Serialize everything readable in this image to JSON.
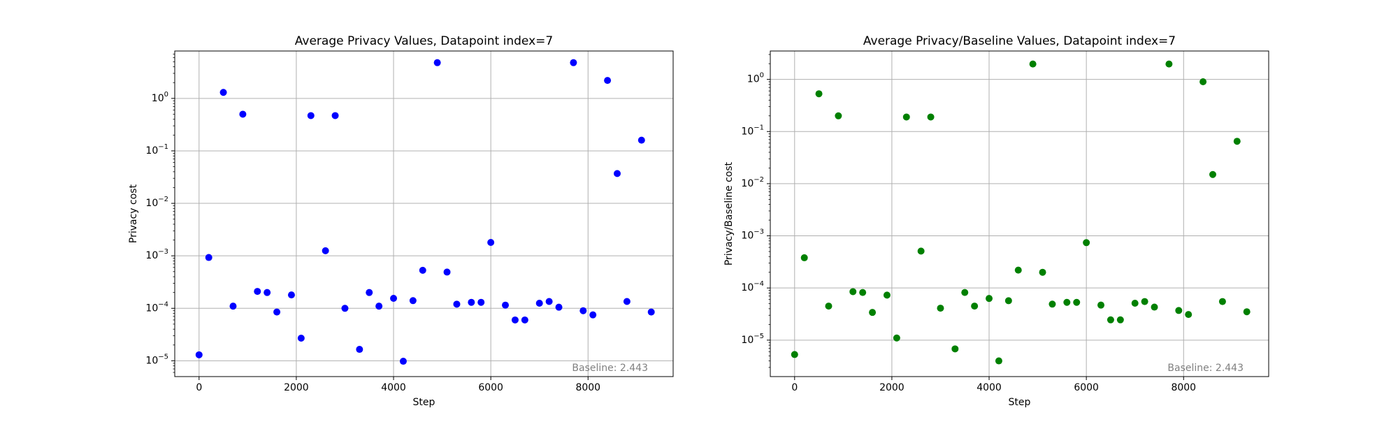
{
  "chart_data": [
    {
      "type": "scatter",
      "title": "Average Privacy Values, Datapoint index=7",
      "xlabel": "Step",
      "ylabel": "Privacy cost",
      "yscale": "log",
      "xlim": [
        -500,
        9750
      ],
      "ylim": [
        5e-06,
        8
      ],
      "xticks": [
        0,
        2000,
        4000,
        6000,
        8000
      ],
      "xtick_labels": [
        "0",
        "2000",
        "4000",
        "6000",
        "8000"
      ],
      "yticks": [
        1e-05,
        0.0001,
        0.001,
        0.01,
        0.1,
        1
      ],
      "ytick_labels": [
        "10^-5",
        "10^-4",
        "10^-3",
        "10^-2",
        "10^-1",
        "10^0"
      ],
      "grid": true,
      "color": "#0000ff",
      "annotation": "Baseline: 2.443",
      "annotation_placement": "bottom-right",
      "x": [
        0,
        200,
        500,
        700,
        900,
        1200,
        1400,
        1600,
        1900,
        2100,
        2300,
        2600,
        2800,
        3000,
        3300,
        3500,
        3700,
        4000,
        4200,
        4400,
        4600,
        4900,
        5100,
        5300,
        5600,
        5800,
        6000,
        6300,
        6500,
        6700,
        7000,
        7200,
        7400,
        7700,
        7900,
        8100,
        8400,
        8600,
        8800,
        9100,
        9300
      ],
      "y": [
        1.3e-05,
        0.00093,
        1.3,
        0.00011,
        0.5,
        0.00021,
        0.0002,
        8.5e-05,
        0.00018,
        2.7e-05,
        0.47,
        0.00125,
        0.47,
        0.0001,
        1.65e-05,
        0.0002,
        0.00011,
        0.000155,
        9.8e-06,
        0.00014,
        0.00053,
        4.8,
        0.00049,
        0.00012,
        0.00013,
        0.00013,
        0.0018,
        0.000115,
        6e-05,
        6e-05,
        0.000125,
        0.000135,
        0.000105,
        4.8,
        9e-05,
        7.5e-05,
        2.2,
        0.037,
        0.000135,
        0.16,
        8.5e-05
      ]
    },
    {
      "type": "scatter",
      "title": "Average Privacy/Baseline Values, Datapoint index=7",
      "xlabel": "Step",
      "ylabel": "Privacy/Baseline cost",
      "yscale": "log",
      "xlim": [
        -500,
        9750
      ],
      "ylim": [
        2e-06,
        3.5
      ],
      "xticks": [
        0,
        2000,
        4000,
        6000,
        8000
      ],
      "xtick_labels": [
        "0",
        "2000",
        "4000",
        "6000",
        "8000"
      ],
      "yticks": [
        1e-05,
        0.0001,
        0.001,
        0.01,
        0.1,
        1
      ],
      "ytick_labels": [
        "10^-5",
        "10^-4",
        "10^-3",
        "10^-2",
        "10^-1",
        "10^0"
      ],
      "grid": true,
      "color": "#008000",
      "annotation": "Baseline: 2.443",
      "annotation_placement": "bottom-right",
      "x": [
        0,
        200,
        500,
        700,
        900,
        1200,
        1400,
        1600,
        1900,
        2100,
        2300,
        2600,
        2800,
        3000,
        3300,
        3500,
        3700,
        4000,
        4200,
        4400,
        4600,
        4900,
        5100,
        5300,
        5600,
        5800,
        6000,
        6300,
        6500,
        6700,
        7000,
        7200,
        7400,
        7700,
        7900,
        8100,
        8400,
        8600,
        8800,
        9100,
        9300
      ],
      "y": [
        5.3e-06,
        0.00038,
        0.53,
        4.5e-05,
        0.2,
        8.5e-05,
        8.2e-05,
        3.4e-05,
        7.3e-05,
        1.1e-05,
        0.19,
        0.00051,
        0.19,
        4.1e-05,
        6.8e-06,
        8.2e-05,
        4.5e-05,
        6.3e-05,
        4e-06,
        5.7e-05,
        0.00022,
        1.97,
        0.0002,
        4.9e-05,
        5.3e-05,
        5.3e-05,
        0.00074,
        4.7e-05,
        2.45e-05,
        2.45e-05,
        5.1e-05,
        5.5e-05,
        4.3e-05,
        1.97,
        3.7e-05,
        3.1e-05,
        0.9,
        0.015,
        5.5e-05,
        0.065,
        3.5e-05
      ]
    }
  ]
}
